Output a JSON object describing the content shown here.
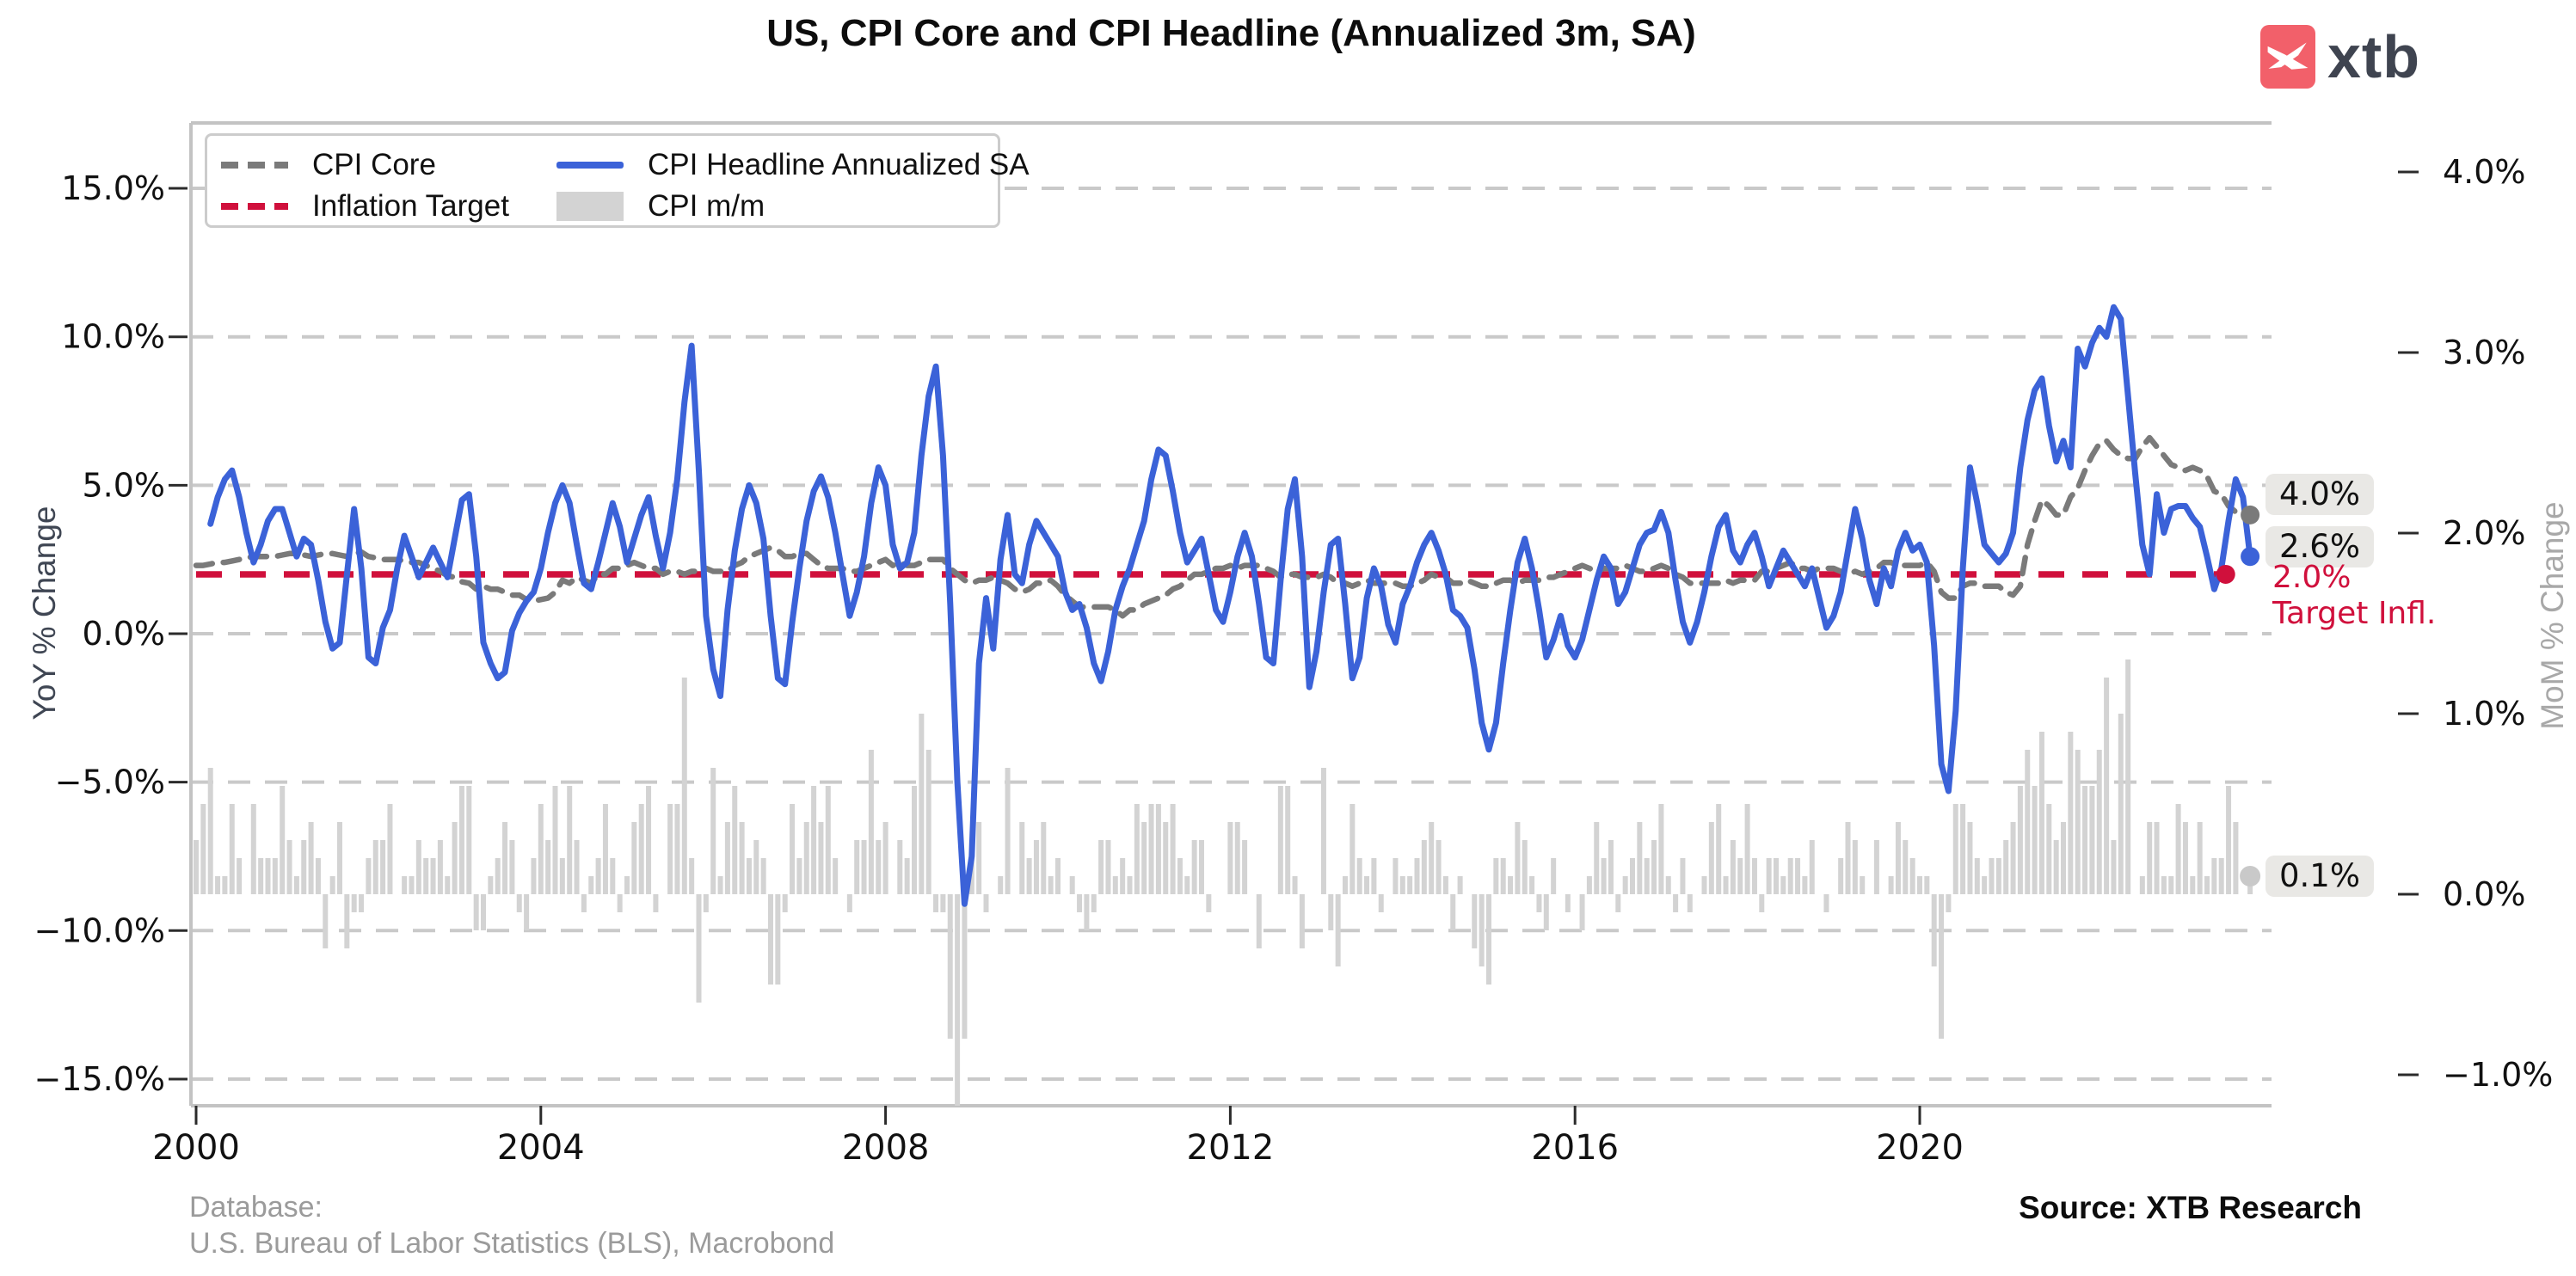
{
  "title": "US, CPI Core and CPI Headline (Annualized 3m, SA)",
  "logo": {
    "word": "xtb",
    "badge_color": "#f2606a",
    "word_color": "#3f4450",
    "glyph": "swallow-x"
  },
  "legend": {
    "items": [
      {
        "label": "CPI Core",
        "style": "dashed",
        "color": "#7a7a7a"
      },
      {
        "label": "CPI Headline Annualized SA",
        "style": "solid",
        "color": "#3b62d8"
      },
      {
        "label": "Inflation Target",
        "style": "dashed",
        "color": "#d0103c"
      },
      {
        "label": "CPI m/m",
        "style": "patch",
        "color": "#d3d3d3"
      }
    ]
  },
  "annotations": {
    "core_end": "4.0%",
    "headline_end": "2.6%",
    "target_line1": "2.0%",
    "target_line2": "Target Infl.",
    "target_color": "#d0103c",
    "mom_end": "0.1%"
  },
  "footer": {
    "database_line1": "Database:",
    "database_line2": "U.S. Bureau of Labor Statistics (BLS), Macrobond",
    "source": "Source: XTB Research"
  },
  "chart_data": {
    "type": "combo",
    "title": "US, CPI Core and CPI Headline (Annualized 3m, SA)",
    "x_start": "2000-01",
    "frequency": "monthly",
    "x_axis": {
      "tick_labels": [
        "2000",
        "2004",
        "2008",
        "2012",
        "2016",
        "2020"
      ],
      "tick_years": [
        2000,
        2004,
        2008,
        2012,
        2016,
        2020
      ],
      "range_years": [
        1999.94,
        2024.08
      ]
    },
    "left_axis": {
      "label": "YoY % Change",
      "tick_labels": [
        "15.0%",
        "10.0%",
        "5.0%",
        "0.0%",
        "−5.0%",
        "−10.0%",
        "−15.0%"
      ],
      "tick_values": [
        15,
        10,
        5,
        0,
        -5,
        -10,
        -15
      ],
      "grid": true
    },
    "right_axis": {
      "label": "MoM % Change",
      "tick_labels": [
        "4.0%",
        "3.0%",
        "2.0%",
        "1.0%",
        "0.0%",
        "−1.0%"
      ],
      "tick_values": [
        4,
        3,
        2,
        1,
        0,
        -1
      ]
    },
    "grid_color": "#c9c9c9",
    "series": [
      {
        "name": "CPI Core",
        "type": "line",
        "style": "dashed",
        "axis": "left",
        "color": "#7a7a7a",
        "end_dot": true,
        "values": [
          2.3,
          2.3,
          2.35,
          2.4,
          2.4,
          2.45,
          2.5,
          2.55,
          2.6,
          2.6,
          2.6,
          2.6,
          2.65,
          2.7,
          2.7,
          2.65,
          2.6,
          2.65,
          2.7,
          2.7,
          2.65,
          2.6,
          2.7,
          2.75,
          2.6,
          2.55,
          2.5,
          2.5,
          2.5,
          2.45,
          2.4,
          2.4,
          2.3,
          2.2,
          2.1,
          1.95,
          1.9,
          1.75,
          1.7,
          1.5,
          1.6,
          1.5,
          1.5,
          1.4,
          1.3,
          1.3,
          1.15,
          1.1,
          1.15,
          1.2,
          1.4,
          1.8,
          1.7,
          1.9,
          1.8,
          1.7,
          2.0,
          2.0,
          2.2,
          2.2,
          2.3,
          2.4,
          2.3,
          2.2,
          2.2,
          2.0,
          2.1,
          2.1,
          2.0,
          2.1,
          2.1,
          2.2,
          2.1,
          2.1,
          2.1,
          2.3,
          2.4,
          2.6,
          2.7,
          2.8,
          2.9,
          2.8,
          2.6,
          2.6,
          2.7,
          2.7,
          2.5,
          2.3,
          2.2,
          2.2,
          2.2,
          2.1,
          2.1,
          2.2,
          2.3,
          2.4,
          2.5,
          2.3,
          2.4,
          2.3,
          2.3,
          2.4,
          2.5,
          2.5,
          2.5,
          2.2,
          2.0,
          1.8,
          1.7,
          1.8,
          1.8,
          1.9,
          1.8,
          1.7,
          1.5,
          1.4,
          1.5,
          1.7,
          1.7,
          1.8,
          1.6,
          1.3,
          1.1,
          0.9,
          0.9,
          0.9,
          0.9,
          0.9,
          0.8,
          0.6,
          0.8,
          0.8,
          1.0,
          1.1,
          1.2,
          1.3,
          1.5,
          1.6,
          1.8,
          2.0,
          2.0,
          2.1,
          2.2,
          2.2,
          2.3,
          2.2,
          2.3,
          2.3,
          2.3,
          2.2,
          2.1,
          1.9,
          2.0,
          2.0,
          1.9,
          1.9,
          1.9,
          2.0,
          1.9,
          1.7,
          1.7,
          1.6,
          1.7,
          1.8,
          1.7,
          1.7,
          1.7,
          1.7,
          1.6,
          1.6,
          1.7,
          1.8,
          2.0,
          1.9,
          1.9,
          1.7,
          1.7,
          1.8,
          1.7,
          1.6,
          1.6,
          1.7,
          1.8,
          1.8,
          1.7,
          1.8,
          1.8,
          1.8,
          1.9,
          1.9,
          2.0,
          2.1,
          2.2,
          2.3,
          2.2,
          2.1,
          2.2,
          2.2,
          2.2,
          2.3,
          2.2,
          2.1,
          2.1,
          2.2,
          2.3,
          2.2,
          2.0,
          1.9,
          1.7,
          1.7,
          1.7,
          1.7,
          1.7,
          1.8,
          1.7,
          1.8,
          1.8,
          1.8,
          2.1,
          2.1,
          2.2,
          2.3,
          2.4,
          2.2,
          2.2,
          2.1,
          2.2,
          2.2,
          2.2,
          2.1,
          2.0,
          2.1,
          2.0,
          2.1,
          2.2,
          2.4,
          2.4,
          2.3,
          2.3,
          2.3,
          2.3,
          2.4,
          2.1,
          1.4,
          1.2,
          1.2,
          1.6,
          1.7,
          1.7,
          1.6,
          1.6,
          1.6,
          1.4,
          1.3,
          1.6,
          3.0,
          3.8,
          4.5,
          4.3,
          4.0,
          4.0,
          4.6,
          4.9,
          5.5,
          6.0,
          6.4,
          6.5,
          6.2,
          6.0,
          5.9,
          5.9,
          6.3,
          6.6,
          6.3,
          6.0,
          5.7,
          5.6,
          5.5,
          5.6,
          5.5,
          5.3,
          4.8,
          4.7,
          4.3,
          4.1,
          4.0,
          4.0
        ]
      },
      {
        "name": "CPI Headline Annualized SA",
        "type": "line",
        "style": "solid",
        "axis": "left",
        "color": "#3b62d8",
        "end_dot": true,
        "values": [
          null,
          null,
          3.7,
          4.6,
          5.2,
          5.5,
          4.6,
          3.4,
          2.4,
          3.0,
          3.8,
          4.2,
          4.2,
          3.4,
          2.6,
          3.2,
          3.0,
          1.8,
          0.4,
          -0.5,
          -0.3,
          2.0,
          4.2,
          2.2,
          -0.8,
          -1.0,
          0.2,
          0.8,
          2.2,
          3.3,
          2.6,
          1.9,
          2.4,
          2.9,
          2.4,
          1.9,
          3.2,
          4.5,
          4.7,
          2.6,
          -0.3,
          -1.0,
          -1.5,
          -1.3,
          0.1,
          0.7,
          1.1,
          1.4,
          2.2,
          3.4,
          4.4,
          5.0,
          4.4,
          3.0,
          1.7,
          1.5,
          2.4,
          3.4,
          4.4,
          3.6,
          2.4,
          3.2,
          4.0,
          4.6,
          3.3,
          2.2,
          3.4,
          5.2,
          7.8,
          9.7,
          5.5,
          0.6,
          -1.2,
          -2.1,
          0.8,
          2.8,
          4.2,
          5.0,
          4.4,
          3.2,
          0.6,
          -1.5,
          -1.7,
          0.4,
          2.2,
          3.8,
          4.8,
          5.3,
          4.6,
          3.4,
          2.0,
          0.6,
          1.4,
          2.6,
          4.4,
          5.6,
          5.0,
          3.0,
          2.2,
          2.4,
          3.4,
          6.0,
          8.0,
          9.0,
          6.0,
          1.0,
          -5.0,
          -9.1,
          -7.5,
          -1.0,
          1.2,
          -0.5,
          2.5,
          4.0,
          2.0,
          1.7,
          3.0,
          3.8,
          3.4,
          3.0,
          2.6,
          1.4,
          0.8,
          1.0,
          0.2,
          -1.0,
          -1.6,
          -0.6,
          0.8,
          1.6,
          2.2,
          3.0,
          3.8,
          5.2,
          6.2,
          6.0,
          4.8,
          3.4,
          2.4,
          2.8,
          3.2,
          2.0,
          0.8,
          0.4,
          1.4,
          2.6,
          3.4,
          2.6,
          1.0,
          -0.8,
          -1.0,
          1.8,
          4.2,
          5.2,
          2.6,
          -1.8,
          -0.6,
          1.4,
          3.0,
          3.2,
          1.0,
          -1.5,
          -0.8,
          1.2,
          2.2,
          1.6,
          0.3,
          -0.3,
          1.0,
          1.6,
          2.4,
          3.0,
          3.4,
          2.8,
          2.0,
          0.8,
          0.6,
          0.2,
          -1.2,
          -3.0,
          -3.9,
          -3.0,
          -1.0,
          0.8,
          2.4,
          3.2,
          2.2,
          0.8,
          -0.8,
          -0.2,
          0.6,
          -0.4,
          -0.8,
          -0.2,
          0.8,
          1.8,
          2.6,
          2.2,
          1.0,
          1.4,
          2.2,
          3.0,
          3.4,
          3.5,
          4.1,
          3.4,
          1.8,
          0.4,
          -0.3,
          0.4,
          1.4,
          2.6,
          3.6,
          4.0,
          2.8,
          2.4,
          3.0,
          3.4,
          2.6,
          1.6,
          2.2,
          2.8,
          2.4,
          2.0,
          1.6,
          2.2,
          1.2,
          0.2,
          0.6,
          1.4,
          2.8,
          4.2,
          3.2,
          1.8,
          1.0,
          2.2,
          1.6,
          2.8,
          3.4,
          2.8,
          3.0,
          2.4,
          -0.4,
          -4.4,
          -5.3,
          -2.6,
          2.2,
          5.6,
          4.4,
          3.0,
          2.7,
          2.4,
          2.7,
          3.4,
          5.6,
          7.2,
          8.2,
          8.6,
          7.0,
          5.8,
          6.5,
          5.6,
          9.6,
          9.0,
          9.8,
          10.3,
          10.0,
          11.0,
          10.6,
          8.0,
          5.4,
          3.0,
          2.0,
          4.7,
          3.4,
          4.2,
          4.3,
          4.3,
          3.9,
          3.6,
          2.6,
          1.5,
          2.2,
          3.8,
          5.2,
          4.6,
          2.6
        ]
      },
      {
        "name": "Inflation Target",
        "type": "hline",
        "style": "dashed",
        "axis": "left",
        "color": "#d0103c",
        "value": 2.0,
        "end_year": 2023.55,
        "end_dot": true
      },
      {
        "name": "CPI m/m",
        "type": "bar",
        "axis": "right",
        "color": "#d3d3d3",
        "end_dot": true,
        "values": [
          0.3,
          0.5,
          0.7,
          0.1,
          0.1,
          0.5,
          0.2,
          0.0,
          0.5,
          0.2,
          0.2,
          0.2,
          0.6,
          0.3,
          0.1,
          0.3,
          0.4,
          0.2,
          -0.3,
          0.1,
          0.4,
          -0.3,
          -0.1,
          -0.1,
          0.2,
          0.3,
          0.3,
          0.5,
          0.0,
          0.1,
          0.1,
          0.3,
          0.2,
          0.2,
          0.3,
          0.1,
          0.4,
          0.6,
          0.6,
          -0.2,
          -0.2,
          0.1,
          0.2,
          0.4,
          0.3,
          -0.1,
          -0.2,
          0.2,
          0.5,
          0.3,
          0.6,
          0.2,
          0.6,
          0.3,
          -0.1,
          0.1,
          0.2,
          0.5,
          0.2,
          -0.1,
          0.1,
          0.4,
          0.5,
          0.6,
          -0.1,
          0.0,
          0.5,
          0.5,
          1.2,
          0.2,
          -0.6,
          -0.1,
          0.7,
          0.1,
          0.4,
          0.6,
          0.4,
          0.2,
          0.3,
          0.2,
          -0.5,
          -0.5,
          -0.1,
          0.5,
          0.2,
          0.4,
          0.6,
          0.4,
          0.6,
          0.2,
          0.0,
          -0.1,
          0.3,
          0.3,
          0.8,
          0.3,
          0.4,
          0.0,
          0.3,
          0.2,
          0.6,
          1.0,
          0.8,
          -0.1,
          -0.1,
          -0.8,
          -1.7,
          -0.8,
          0.3,
          0.4,
          -0.1,
          0.0,
          0.1,
          0.7,
          0.0,
          0.4,
          0.2,
          0.3,
          0.4,
          0.1,
          0.2,
          0.0,
          0.1,
          -0.1,
          -0.2,
          -0.1,
          0.3,
          0.3,
          0.1,
          0.2,
          0.1,
          0.5,
          0.4,
          0.5,
          0.5,
          0.4,
          0.5,
          0.2,
          0.1,
          0.3,
          0.3,
          -0.1,
          0.0,
          0.0,
          0.4,
          0.4,
          0.3,
          0.0,
          -0.3,
          0.0,
          0.0,
          0.6,
          0.6,
          0.1,
          -0.3,
          0.0,
          0.0,
          0.7,
          -0.2,
          -0.4,
          0.1,
          0.5,
          0.2,
          0.1,
          0.2,
          -0.1,
          0.0,
          0.2,
          0.1,
          0.1,
          0.2,
          0.3,
          0.4,
          0.3,
          0.1,
          -0.2,
          0.1,
          0.0,
          -0.3,
          -0.4,
          -0.5,
          0.2,
          0.2,
          0.1,
          0.4,
          0.3,
          0.1,
          -0.1,
          -0.2,
          0.2,
          0.0,
          -0.1,
          0.0,
          -0.2,
          0.1,
          0.4,
          0.2,
          0.3,
          -0.1,
          0.1,
          0.2,
          0.4,
          0.2,
          0.3,
          0.5,
          0.1,
          -0.1,
          0.2,
          -0.1,
          0.0,
          0.1,
          0.4,
          0.5,
          0.1,
          0.3,
          0.2,
          0.5,
          0.2,
          -0.1,
          0.2,
          0.2,
          0.1,
          0.2,
          0.2,
          0.1,
          0.3,
          0.0,
          -0.1,
          0.0,
          0.2,
          0.4,
          0.3,
          0.1,
          0.0,
          0.3,
          0.0,
          0.1,
          0.4,
          0.3,
          0.2,
          0.1,
          0.1,
          -0.4,
          -0.8,
          -0.1,
          0.5,
          0.5,
          0.4,
          0.2,
          0.1,
          0.2,
          0.2,
          0.3,
          0.4,
          0.6,
          0.8,
          0.6,
          0.9,
          0.5,
          0.3,
          0.4,
          0.9,
          0.8,
          0.6,
          0.6,
          0.8,
          1.2,
          0.3,
          1.0,
          1.3,
          0.0,
          0.1,
          0.4,
          0.4,
          0.1,
          0.1,
          0.5,
          0.4,
          0.1,
          0.4,
          0.1,
          0.2,
          0.2,
          0.6,
          0.4,
          0.0,
          0.1
        ]
      }
    ],
    "end_labels": {
      "core": 4.0,
      "headline": 2.6,
      "target": 2.0,
      "mom": 0.1
    }
  }
}
